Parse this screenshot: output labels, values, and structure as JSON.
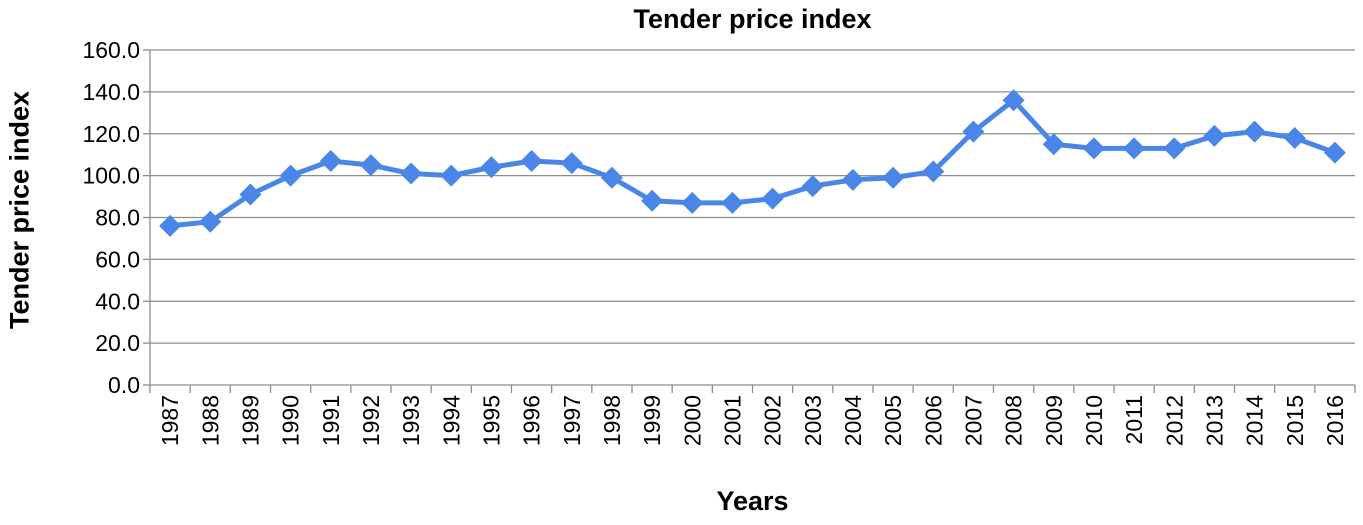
{
  "chart_data": {
    "type": "line",
    "title": "Tender price index",
    "xlabel": "Years",
    "ylabel": "Tender price index",
    "ylim": [
      0,
      160
    ],
    "yticks": [
      "0.0",
      "20.0",
      "40.0",
      "60.0",
      "80.0",
      "100.0",
      "120.0",
      "140.0",
      "160.0"
    ],
    "grid": true,
    "legend": "none",
    "categories": [
      "1987",
      "1988",
      "1989",
      "1990",
      "1991",
      "1992",
      "1993",
      "1994",
      "1995",
      "1996",
      "1997",
      "1998",
      "1999",
      "2000",
      "2001",
      "2002",
      "2003",
      "2004",
      "2005",
      "2006",
      "2007",
      "2008",
      "2009",
      "2010",
      "2011",
      "2012",
      "2013",
      "2014",
      "2015",
      "2016"
    ],
    "series": [
      {
        "values": [
          76,
          78,
          91,
          100,
          107,
          105,
          101,
          100,
          104,
          107,
          106,
          99,
          88,
          87,
          87,
          89,
          95,
          98,
          99,
          102,
          121,
          136,
          115,
          113,
          113,
          113,
          119,
          121,
          118,
          111
        ],
        "color": "#4A86E8",
        "marker": "diamond"
      }
    ]
  }
}
